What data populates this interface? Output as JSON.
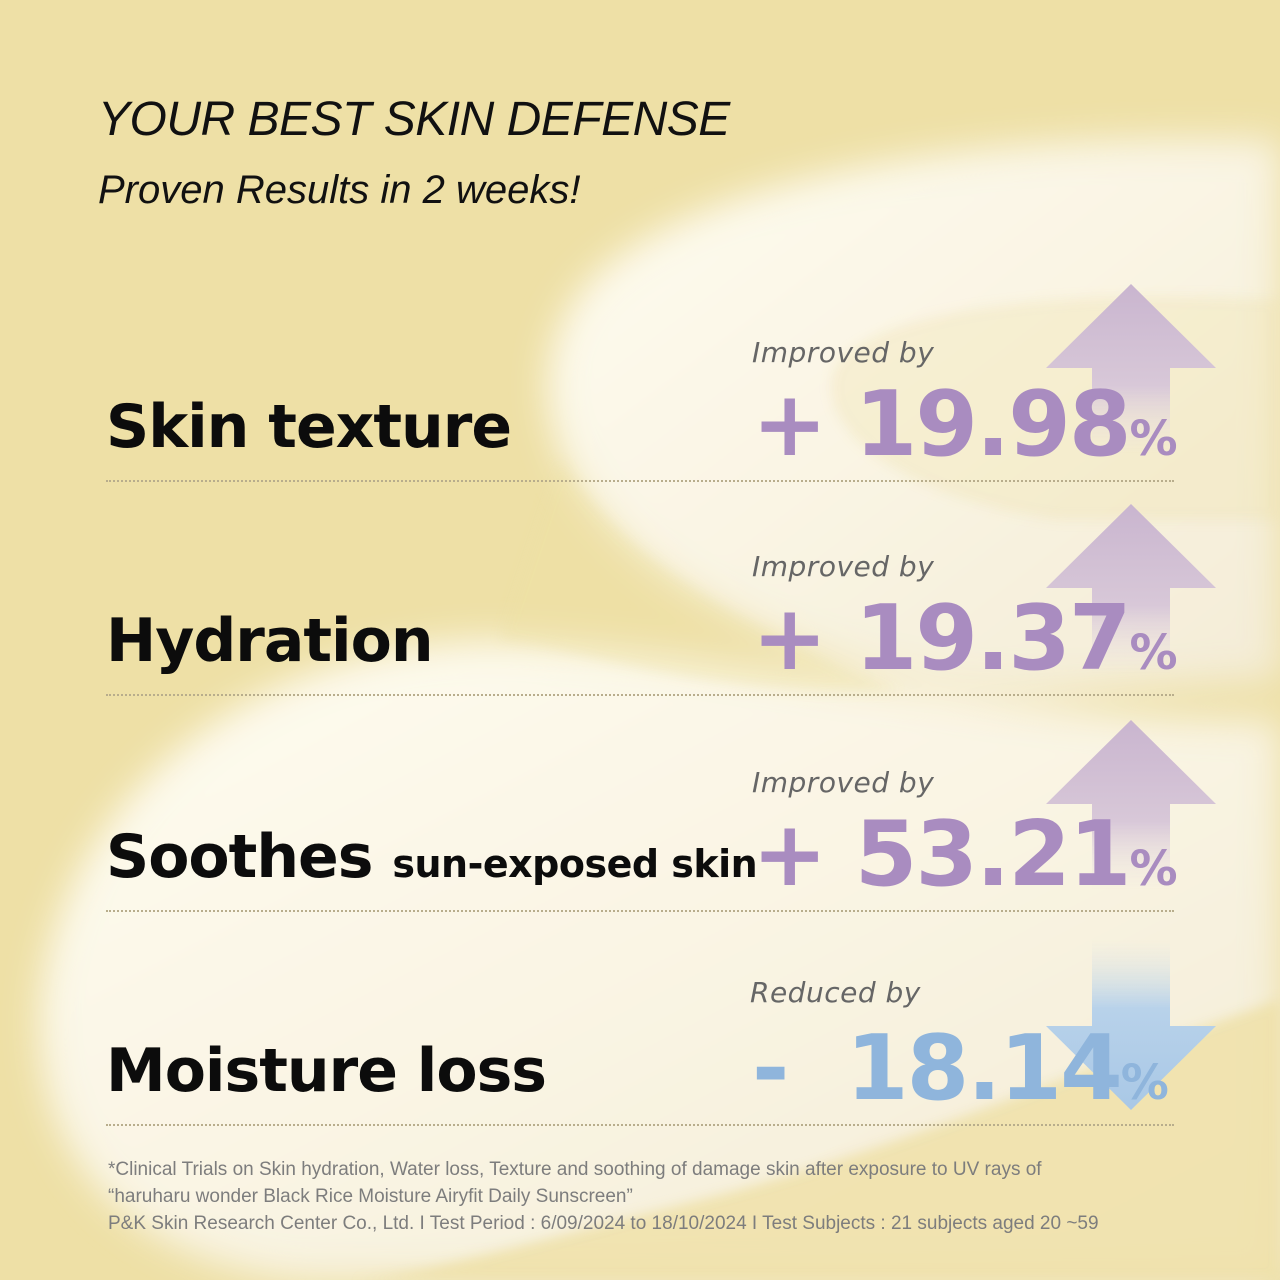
{
  "header": {
    "title": "YOUR BEST SKIN DEFENSE",
    "subtitle": "Proven Results in 2 weeks!"
  },
  "colors": {
    "background": "#eee0a6",
    "cream": "#fbf8ee",
    "improved_value": "#a98cc0",
    "improved_arrow": "#c9b5cf",
    "reduced_value": "#8fb5dc",
    "reduced_arrow": "#a9c8e6"
  },
  "results": [
    {
      "label": "Skin texture",
      "label_small": "",
      "caption": "Improved by",
      "sign": "+",
      "value": "19.98",
      "unit": "%",
      "direction": "up",
      "arrow_icon": "arrow-up-icon"
    },
    {
      "label": "Hydration",
      "label_small": "",
      "caption": "Improved by",
      "sign": "+",
      "value": "19.37",
      "unit": "%",
      "direction": "up",
      "arrow_icon": "arrow-up-icon"
    },
    {
      "label": "Soothes",
      "label_small": "sun-exposed skin",
      "caption": "Improved by",
      "sign": "+",
      "value": "53.21",
      "unit": "%",
      "direction": "up",
      "arrow_icon": "arrow-up-icon"
    },
    {
      "label": "Moisture loss",
      "label_small": "",
      "caption": "Reduced by",
      "sign": "-",
      "value": "18.14",
      "unit": "%",
      "direction": "down",
      "arrow_icon": "arrow-down-icon"
    }
  ],
  "footnote": {
    "line1": "*Clinical Trials on Skin hydration, Water loss, Texture and soothing of damage skin after exposure to UV rays of",
    "line2": "“haruharu wonder Black Rice Moisture Airyfit Daily Sunscreen”",
    "line3": "P&K Skin Research Center Co., Ltd. I  Test Period : 6/09/2024 to 18/10/2024  I  Test Subjects : 21 subjects aged 20 ~59"
  }
}
